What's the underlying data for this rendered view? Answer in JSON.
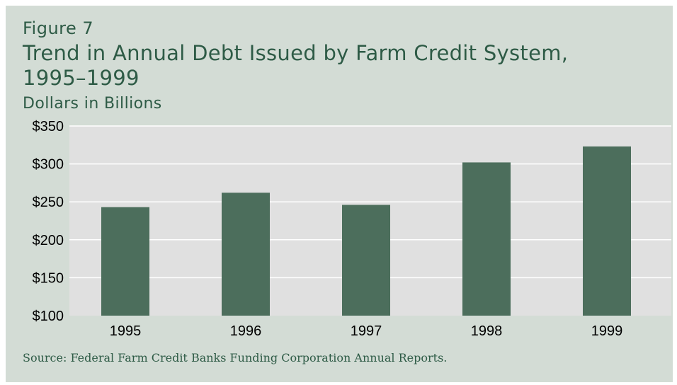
{
  "figure_label": "Figure 7",
  "title": "Trend in Annual Debt Issued by Farm Credit System, 1995–1999",
  "subtitle": "Dollars in Billions",
  "source": "Source:   Federal Farm Credit Banks Funding Corporation Annual Reports.",
  "colors": {
    "panel_background": "#d3dcd5",
    "plot_background": "#e0e0e0",
    "bar": "#4c6e5c",
    "gridline": "#ffffff",
    "title_text": "#2e5b46"
  },
  "chart_data": {
    "type": "bar",
    "categories": [
      "1995",
      "1996",
      "1997",
      "1998",
      "1999"
    ],
    "values": [
      243,
      262,
      246,
      302,
      323
    ],
    "ylim": [
      100,
      350
    ],
    "yticks": [
      100,
      150,
      200,
      250,
      300,
      350
    ],
    "ytick_labels": [
      "$100",
      "$150",
      "$200",
      "$250",
      "$300",
      "$350"
    ],
    "grid": true,
    "legend": "none"
  }
}
